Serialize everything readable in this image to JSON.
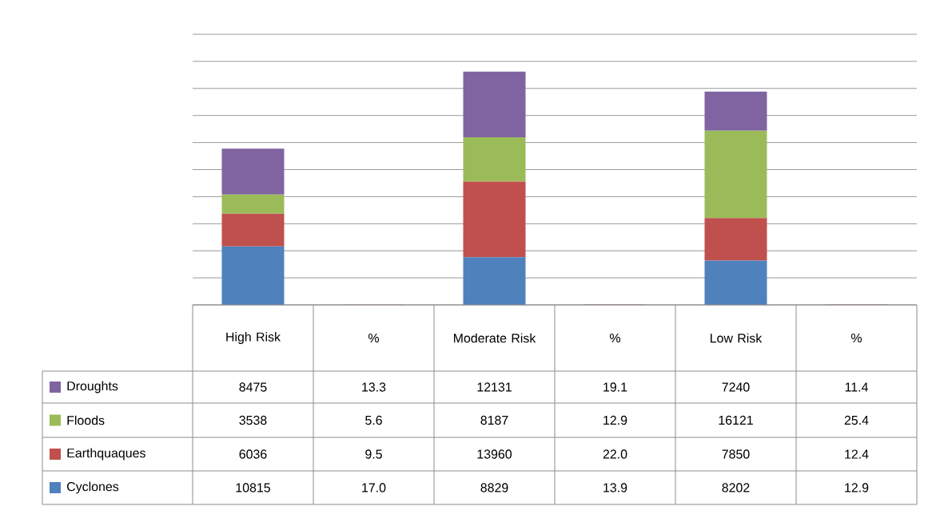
{
  "chart_data": {
    "type": "bar",
    "stacked": true,
    "categories": [
      "High Risk",
      "%",
      "Moderate Risk",
      "%",
      "Low Risk",
      "%"
    ],
    "series": [
      {
        "name": "Cyclones",
        "color": "#4f81bd",
        "values": [
          10815,
          17.0,
          8829,
          13.9,
          8202,
          12.9
        ],
        "value_labels": [
          "10815",
          "17.0",
          "8829",
          "13.9",
          "8202",
          "12.9"
        ]
      },
      {
        "name": "Earthquaques",
        "color": "#c0504d",
        "values": [
          6036,
          9.5,
          13960,
          22.0,
          7850,
          12.4
        ],
        "value_labels": [
          "6036",
          "9.5",
          "13960",
          "22.0",
          "7850",
          "12.4"
        ]
      },
      {
        "name": "Floods",
        "color": "#9bbb59",
        "values": [
          3538,
          5.6,
          8187,
          12.9,
          16121,
          25.4
        ],
        "value_labels": [
          "3538",
          "5.6",
          "8187",
          "12.9",
          "16121",
          "25.4"
        ]
      },
      {
        "name": "Droughts",
        "color": "#8064a2",
        "values": [
          8475,
          13.3,
          12131,
          19.1,
          7240,
          11.4
        ],
        "value_labels": [
          "8475",
          "13.3",
          "12131",
          "19.1",
          "7240",
          "11.4"
        ]
      }
    ],
    "ylim": [
      0,
      50000
    ],
    "yticks": [
      {
        "value": 0,
        "label": null
      },
      {
        "value": 5000,
        "label": null
      },
      {
        "value": 10000,
        "label": null
      },
      {
        "value": 15000,
        "label": null
      },
      {
        "value": 20000,
        "label": null
      },
      {
        "value": 25000,
        "label": null
      },
      {
        "value": 30000,
        "label": null
      },
      {
        "value": 35000,
        "label": null
      },
      {
        "value": 40000,
        "label": null
      },
      {
        "value": 45000,
        "label": null
      },
      {
        "value": 50000,
        "label": null
      }
    ],
    "grid": "y",
    "tick_labels": "x",
    "legend": "left"
  }
}
